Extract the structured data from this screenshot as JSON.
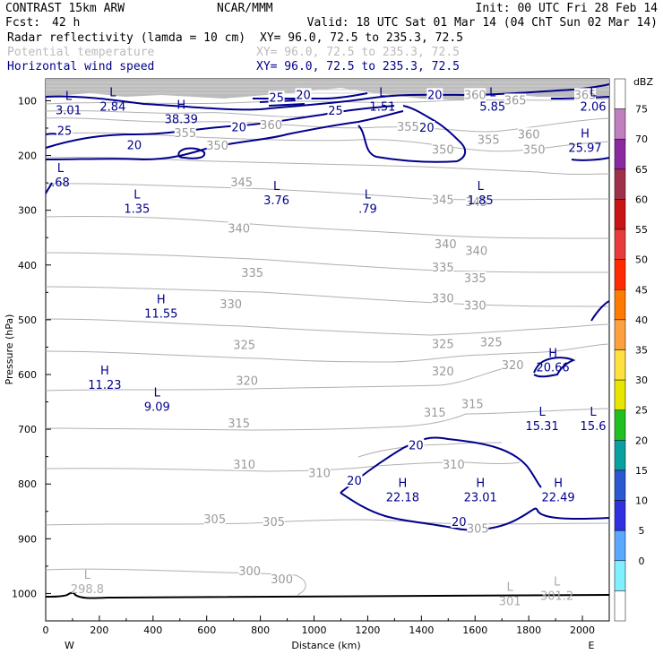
{
  "header": {
    "model": "CONTRAST 15km ARW",
    "center": "NCAR/MMM",
    "init": "Init: 00 UTC Fri 28 Feb 14",
    "fcst_label": "Fcst:",
    "fcst_value": "42 h",
    "valid": "Valid: 18 UTC Sat 01 Mar 14 (04 ChT Sun 02 Mar 14)",
    "fields": [
      {
        "name": "Radar reflectivity (lamda = 10 cm)",
        "xy": "XY=   96.0, 72.5 to 235.3, 72.5",
        "color": "#000000"
      },
      {
        "name": "Potential temperature",
        "xy": "XY=  96.0, 72.5 to 235.3, 72.5",
        "color": "#bbbbbb"
      },
      {
        "name": "Horizontal wind speed",
        "xy": "XY=  96.0, 72.5 to 235.3, 72.5",
        "color": "#00008b"
      }
    ]
  },
  "chart_data": {
    "type": "cross-section",
    "xlabel": "Distance (km)",
    "ylabel": "Pressure (hPa)",
    "xlim": [
      0,
      2100
    ],
    "ylim": [
      1050,
      60
    ],
    "x_ticks": [
      "0",
      "200",
      "400",
      "600",
      "800",
      "1000",
      "1200",
      "1400",
      "1600",
      "1800",
      "2000"
    ],
    "y_ticks": [
      "100",
      "200",
      "300",
      "400",
      "500",
      "600",
      "700",
      "800",
      "900",
      "1000"
    ],
    "x_end_left": "W",
    "x_end_right": "E",
    "colorbar": {
      "unit": "dBZ",
      "levels": [
        "75",
        "70",
        "65",
        "60",
        "55",
        "50",
        "45",
        "40",
        "35",
        "30",
        "25",
        "20",
        "15",
        "10",
        "5",
        "0"
      ],
      "colors": [
        "#ffffff",
        "#c080c0",
        "#8a2aa0",
        "#a0304a",
        "#c81414",
        "#e83c3c",
        "#ff2a00",
        "#ff7a00",
        "#ffa040",
        "#ffe040",
        "#e6e600",
        "#20c020",
        "#0aa0a0",
        "#2a58d0",
        "#3030e0",
        "#5aa8ff",
        "#7ff0ff",
        "#ffffff"
      ]
    },
    "theta_labels": [
      {
        "text": "365",
        "x": 2010,
        "p": 90
      },
      {
        "text": "360",
        "x": 1600,
        "p": 90
      },
      {
        "text": "365",
        "x": 1750,
        "p": 100
      },
      {
        "text": "360",
        "x": 840,
        "p": 145
      },
      {
        "text": "355",
        "x": 520,
        "p": 160
      },
      {
        "text": "355",
        "x": 1650,
        "p": 172
      },
      {
        "text": "360",
        "x": 1800,
        "p": 162
      },
      {
        "text": "350",
        "x": 640,
        "p": 183
      },
      {
        "text": "350",
        "x": 1480,
        "p": 190
      },
      {
        "text": "355",
        "x": 1350,
        "p": 148
      },
      {
        "text": "350",
        "x": 1820,
        "p": 190
      },
      {
        "text": "345",
        "x": 730,
        "p": 250
      },
      {
        "text": "345",
        "x": 1480,
        "p": 282
      },
      {
        "text": "345",
        "x": 1605,
        "p": 286
      },
      {
        "text": "340",
        "x": 720,
        "p": 334
      },
      {
        "text": "340",
        "x": 1490,
        "p": 363
      },
      {
        "text": "340",
        "x": 1605,
        "p": 375
      },
      {
        "text": "335",
        "x": 770,
        "p": 415
      },
      {
        "text": "335",
        "x": 1480,
        "p": 405
      },
      {
        "text": "335",
        "x": 1600,
        "p": 425
      },
      {
        "text": "330",
        "x": 690,
        "p": 472
      },
      {
        "text": "330",
        "x": 1480,
        "p": 462
      },
      {
        "text": "330",
        "x": 1600,
        "p": 475
      },
      {
        "text": "325",
        "x": 740,
        "p": 547
      },
      {
        "text": "325",
        "x": 1480,
        "p": 545
      },
      {
        "text": "325",
        "x": 1660,
        "p": 542
      },
      {
        "text": "320",
        "x": 750,
        "p": 612
      },
      {
        "text": "320",
        "x": 1480,
        "p": 595
      },
      {
        "text": "320",
        "x": 1740,
        "p": 584
      },
      {
        "text": "315",
        "x": 720,
        "p": 690
      },
      {
        "text": "315",
        "x": 1450,
        "p": 670
      },
      {
        "text": "315",
        "x": 1590,
        "p": 655
      },
      {
        "text": "310",
        "x": 740,
        "p": 765
      },
      {
        "text": "310",
        "x": 1020,
        "p": 781
      },
      {
        "text": "310",
        "x": 1520,
        "p": 765
      },
      {
        "text": "305",
        "x": 630,
        "p": 865
      },
      {
        "text": "305",
        "x": 850,
        "p": 870
      },
      {
        "text": "305",
        "x": 1610,
        "p": 882
      },
      {
        "text": "300",
        "x": 760,
        "p": 960
      },
      {
        "text": "300",
        "x": 880,
        "p": 975
      }
    ],
    "wind_labels": [
      {
        "text": "20",
        "x": 330,
        "p": 182
      },
      {
        "text": "20",
        "x": 720,
        "p": 149
      },
      {
        "text": "25",
        "x": 70,
        "p": 156
      },
      {
        "text": "25",
        "x": 860,
        "p": 95
      },
      {
        "text": "25",
        "x": 1080,
        "p": 119
      },
      {
        "text": "20",
        "x": 960,
        "p": 90
      },
      {
        "text": "20",
        "x": 1450,
        "p": 90
      },
      {
        "text": "20",
        "x": 1420,
        "p": 150
      },
      {
        "text": "20",
        "x": 1380,
        "p": 730
      },
      {
        "text": "20",
        "x": 1150,
        "p": 795
      },
      {
        "text": "20",
        "x": 1540,
        "p": 870
      }
    ],
    "extrema": [
      {
        "type": "L",
        "value": "3.01",
        "x": 85,
        "p": 103,
        "color": "#00008b"
      },
      {
        "type": "L",
        "value": "2.84",
        "x": 250,
        "p": 97,
        "color": "#00008b"
      },
      {
        "type": "H",
        "value": "38.39",
        "x": 505,
        "p": 120,
        "color": "#00008b"
      },
      {
        "type": "L",
        "value": "1.51",
        "x": 1255,
        "p": 97,
        "color": "#00008b"
      },
      {
        "type": "L",
        "value": "5.85",
        "x": 1665,
        "p": 97,
        "color": "#00008b"
      },
      {
        "type": "L",
        "value": "2.06",
        "x": 2040,
        "p": 97,
        "color": "#00008b"
      },
      {
        "type": "H",
        "value": "25.97",
        "x": 2010,
        "p": 172,
        "color": "#00008b"
      },
      {
        "type": "L",
        "value": ".68",
        "x": 55,
        "p": 235,
        "color": "#00008b"
      },
      {
        "type": "L",
        "value": "1.35",
        "x": 340,
        "p": 283,
        "color": "#00008b"
      },
      {
        "type": "L",
        "value": "3.76",
        "x": 860,
        "p": 268,
        "color": "#00008b"
      },
      {
        "type": "L",
        "value": ".79",
        "x": 1200,
        "p": 283,
        "color": "#00008b"
      },
      {
        "type": "L",
        "value": "1.85",
        "x": 1620,
        "p": 268,
        "color": "#00008b"
      },
      {
        "type": "H",
        "value": "11.55",
        "x": 430,
        "p": 475,
        "color": "#00008b"
      },
      {
        "type": "H",
        "value": "20.66",
        "x": 1890,
        "p": 573,
        "color": "#00008b"
      },
      {
        "type": "H",
        "value": "11.23",
        "x": 220,
        "p": 605,
        "color": "#00008b"
      },
      {
        "type": "L",
        "value": "9.09",
        "x": 415,
        "p": 645,
        "color": "#00008b"
      },
      {
        "type": "L",
        "value": "15.31",
        "x": 1850,
        "p": 680,
        "color": "#00008b"
      },
      {
        "type": "L",
        "value": "15.6",
        "x": 2040,
        "p": 680,
        "color": "#00008b"
      },
      {
        "type": "H",
        "value": "22.18",
        "x": 1330,
        "p": 810,
        "color": "#00008b"
      },
      {
        "type": "H",
        "value": "23.01",
        "x": 1620,
        "p": 810,
        "color": "#00008b"
      },
      {
        "type": "H",
        "value": "22.49",
        "x": 1910,
        "p": 810,
        "color": "#00008b"
      },
      {
        "type": "L",
        "value": "298.8",
        "x": 155,
        "p": 978,
        "color": "#aaaaaa"
      },
      {
        "type": "L",
        "value": "301",
        "x": 1730,
        "p": 1000,
        "color": "#aaaaaa"
      },
      {
        "type": "L",
        "value": "301.2",
        "x": 1905,
        "p": 990,
        "color": "#aaaaaa"
      }
    ]
  }
}
